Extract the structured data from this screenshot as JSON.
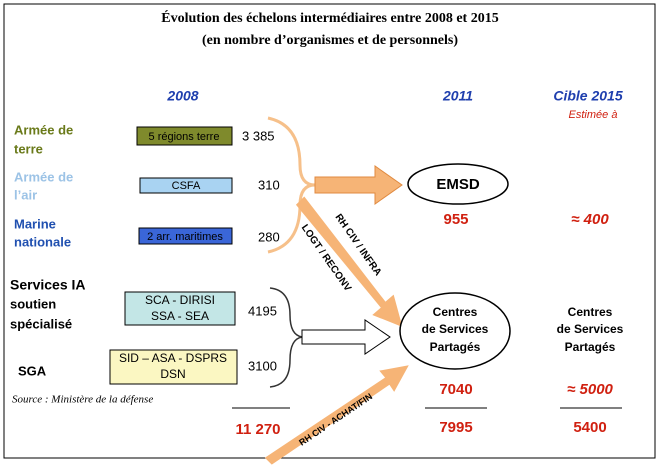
{
  "header": {
    "title": [
      "Évolution des échelons intermédiaires entre 2008 et 2015",
      "(en nombre d’organismes et de personnels)"
    ]
  },
  "columns": {
    "c2008": "2008",
    "c2011": "2011",
    "c2015": "Cible 2015",
    "estimate": "Estimée à"
  },
  "rows": [
    {
      "label": [
        "Armée de",
        "terre"
      ],
      "box": [
        "5 régions terre"
      ],
      "count": "3 385"
    },
    {
      "label": [
        "Armée de",
        "l’air"
      ],
      "box": [
        "CSFA"
      ],
      "count": "310"
    },
    {
      "label": [
        "Marine",
        "nationale"
      ],
      "box": [
        "2 arr. maritimes"
      ],
      "count": "280"
    },
    {
      "label": [
        "Services IA",
        "soutien",
        "spécialisé"
      ],
      "box": [
        "SCA - DIRISI",
        "SSA - SEA"
      ],
      "count": "4195"
    },
    {
      "label": [
        "SGA"
      ],
      "box": [
        "SID – ASA - DSPRS",
        "DSN"
      ],
      "count": "3100"
    }
  ],
  "targets": {
    "emsd": {
      "name": "EMSD",
      "v2011": "955",
      "v2015": "≈ 400"
    },
    "csp": {
      "name": [
        "Centres",
        "de Services",
        "Partagés"
      ],
      "v2011": "7040",
      "v2015": "≈ 5000"
    }
  },
  "totals": {
    "t2008": "11 270",
    "t2011": "7995",
    "t2015": "5400"
  },
  "arrows": {
    "a1": "RH CIV / INFRA",
    "a2": "LOGT / RECONV",
    "a3": "RH CIV - ACHAT/FIN"
  },
  "source": "Source : Ministère de la défense"
}
